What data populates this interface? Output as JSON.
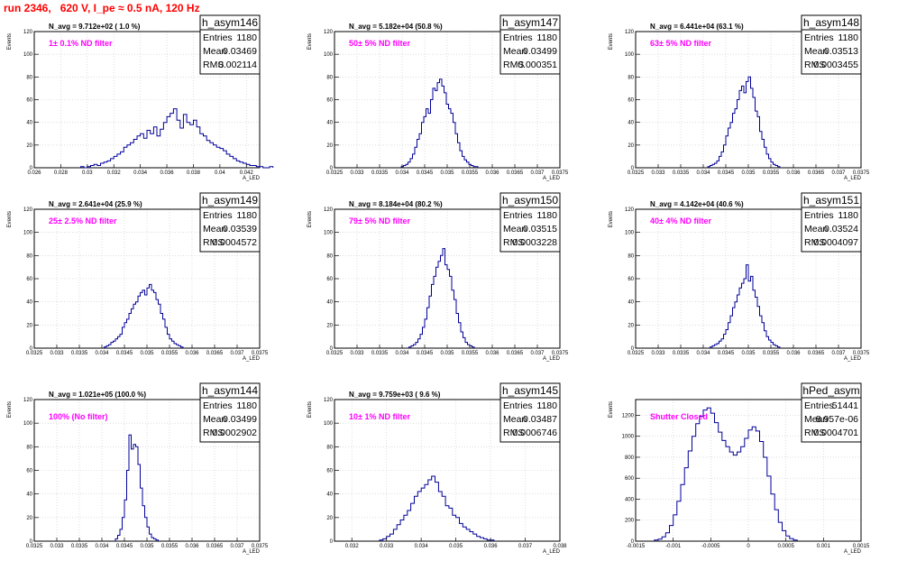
{
  "title": "run 2346,   620 V, I_pe ≈ 0.5 nA, 120 Hz",
  "colors": {
    "hist": "#000099",
    "title": "#ff0000",
    "filter_label": "#ff00ff",
    "grid": "#c8c8c8"
  },
  "chart_data": [
    {
      "type": "bar",
      "name": "h_asym146",
      "annotation": "N_avg = 9.712e+02 ( 1.0 %)",
      "filter_label": "1± 0.1% ND filter",
      "stats": [
        [
          "Entries",
          "1180"
        ],
        [
          "Mean",
          "0.03469"
        ],
        [
          "RMS",
          "0.002114"
        ]
      ],
      "xlabel": "A_LED",
      "ylabel": "Events",
      "xlim": [
        0.026,
        0.043
      ],
      "ylim": [
        0,
        120
      ],
      "xticks": [
        0.026,
        0.028,
        0.03,
        0.032,
        0.034,
        0.036,
        0.038,
        0.04,
        0.042
      ],
      "xtick_labels": [
        "0.026",
        "0.028",
        "0.03",
        "0.032",
        "0.034",
        "0.036",
        "0.038",
        "0.04",
        "0.042"
      ],
      "yticks": [
        0,
        20,
        40,
        60,
        80,
        100,
        120
      ],
      "bin_start": 0.0295,
      "bin_width": 0.00025,
      "values": [
        1,
        0,
        1,
        2,
        3,
        2,
        4,
        5,
        6,
        8,
        10,
        12,
        14,
        18,
        20,
        22,
        25,
        28,
        30,
        26,
        33,
        30,
        36,
        28,
        34,
        40,
        45,
        48,
        52,
        42,
        35,
        47,
        40,
        38,
        42,
        36,
        30,
        28,
        24,
        22,
        20,
        18,
        17,
        15,
        12,
        10,
        8,
        6,
        5,
        4,
        3,
        2,
        2,
        1,
        1,
        0,
        0,
        1
      ]
    },
    {
      "type": "bar",
      "name": "h_asym147",
      "annotation": "N_avg = 5.182e+04 (50.8 %)",
      "filter_label": "50± 5% ND filter",
      "stats": [
        [
          "Entries",
          "1180"
        ],
        [
          "Mean",
          "0.03499"
        ],
        [
          "RMS",
          "0.000351"
        ]
      ],
      "xlabel": "A_LED",
      "ylabel": "Events",
      "xlim": [
        0.0325,
        0.0375
      ],
      "ylim": [
        0,
        120
      ],
      "xticks": [
        0.0325,
        0.033,
        0.0335,
        0.034,
        0.0345,
        0.035,
        0.0355,
        0.036,
        0.0365,
        0.037,
        0.0375
      ],
      "xtick_labels": [
        "0.0325",
        "0.033",
        "0.0335",
        "0.034",
        "0.0345",
        "0.035",
        "0.0355",
        "0.036",
        "0.0365",
        "0.037",
        "0.0375"
      ],
      "yticks": [
        0,
        20,
        40,
        60,
        80,
        100,
        120
      ],
      "bin_start": 0.03398,
      "bin_width": 5e-05,
      "values": [
        1,
        2,
        3,
        5,
        8,
        12,
        18,
        25,
        30,
        40,
        45,
        52,
        48,
        60,
        70,
        68,
        75,
        78,
        72,
        66,
        56,
        52,
        48,
        40,
        30,
        22,
        15,
        10,
        7,
        5,
        3,
        2,
        1,
        1
      ]
    },
    {
      "type": "bar",
      "name": "h_asym148",
      "annotation": "N_avg = 6.441e+04 (63.1 %)",
      "filter_label": "63± 5% ND filter",
      "stats": [
        [
          "Entries",
          "1180"
        ],
        [
          "Mean",
          "0.03513"
        ],
        [
          "RMS",
          "0.0003455"
        ]
      ],
      "xlabel": "A_LED",
      "ylabel": "Events",
      "xlim": [
        0.0325,
        0.0375
      ],
      "ylim": [
        0,
        120
      ],
      "xticks": [
        0.0325,
        0.033,
        0.0335,
        0.034,
        0.0345,
        0.035,
        0.0355,
        0.036,
        0.0365,
        0.037,
        0.0375
      ],
      "xtick_labels": [
        "0.0325",
        "0.033",
        "0.0335",
        "0.034",
        "0.0345",
        "0.035",
        "0.0355",
        "0.036",
        "0.0365",
        "0.037",
        "0.0375"
      ],
      "yticks": [
        0,
        20,
        40,
        60,
        80,
        100,
        120
      ],
      "bin_start": 0.0341,
      "bin_width": 5e-05,
      "values": [
        1,
        2,
        3,
        4,
        6,
        10,
        14,
        20,
        28,
        35,
        40,
        48,
        52,
        60,
        68,
        72,
        66,
        76,
        80,
        70,
        62,
        50,
        45,
        32,
        25,
        18,
        12,
        8,
        5,
        3,
        2,
        1
      ]
    },
    {
      "type": "bar",
      "name": "h_asym149",
      "annotation": "N_avg = 2.641e+04 (25.9 %)",
      "filter_label": "25± 2.5% ND filter",
      "stats": [
        [
          "Entries",
          "1180"
        ],
        [
          "Mean",
          "0.03539"
        ],
        [
          "RMS",
          "0.0004572"
        ]
      ],
      "xlabel": "A_LED",
      "ylabel": "Events",
      "xlim": [
        0.0325,
        0.0375
      ],
      "ylim": [
        0,
        120
      ],
      "xticks": [
        0.0325,
        0.033,
        0.0335,
        0.034,
        0.0345,
        0.035,
        0.0355,
        0.036,
        0.0365,
        0.037,
        0.0375
      ],
      "xtick_labels": [
        "0.0325",
        "0.033",
        "0.0335",
        "0.034",
        "0.0345",
        "0.035",
        "0.0355",
        "0.036",
        "0.0365",
        "0.037",
        "0.0375"
      ],
      "yticks": [
        0,
        20,
        40,
        60,
        80,
        100,
        120
      ],
      "bin_start": 0.03405,
      "bin_width": 5e-05,
      "values": [
        1,
        2,
        3,
        5,
        6,
        8,
        10,
        12,
        18,
        22,
        25,
        30,
        34,
        38,
        40,
        45,
        48,
        50,
        46,
        52,
        55,
        50,
        48,
        42,
        38,
        30,
        25,
        18,
        12,
        8,
        6,
        4,
        3,
        2,
        1
      ]
    },
    {
      "type": "bar",
      "name": "h_asym150",
      "annotation": "N_avg = 8.184e+04 (80.2 %)",
      "filter_label": "79± 5% ND filter",
      "stats": [
        [
          "Entries",
          "1180"
        ],
        [
          "Mean",
          "0.03515"
        ],
        [
          "RMS",
          "0.0003228"
        ]
      ],
      "xlabel": "A_LED",
      "ylabel": "Events",
      "xlim": [
        0.0325,
        0.0375
      ],
      "ylim": [
        0,
        120
      ],
      "xticks": [
        0.0325,
        0.033,
        0.0335,
        0.034,
        0.0345,
        0.035,
        0.0355,
        0.036,
        0.0365,
        0.037,
        0.0375
      ],
      "xtick_labels": [
        "0.0325",
        "0.033",
        "0.0335",
        "0.034",
        "0.0345",
        "0.035",
        "0.0355",
        "0.036",
        "0.0365",
        "0.037",
        "0.0375"
      ],
      "yticks": [
        0,
        20,
        40,
        60,
        80,
        100,
        120
      ],
      "bin_start": 0.03415,
      "bin_width": 5e-05,
      "values": [
        1,
        2,
        3,
        5,
        8,
        12,
        18,
        25,
        35,
        45,
        55,
        62,
        70,
        75,
        80,
        86,
        72,
        68,
        62,
        50,
        42,
        30,
        22,
        14,
        9,
        5,
        3,
        2,
        1
      ]
    },
    {
      "type": "bar",
      "name": "h_asym151",
      "annotation": "N_avg = 4.142e+04 (40.6 %)",
      "filter_label": "40± 4% ND filter",
      "stats": [
        [
          "Entries",
          "1180"
        ],
        [
          "Mean",
          "0.03524"
        ],
        [
          "RMS",
          "0.0004097"
        ]
      ],
      "xlabel": "A_LED",
      "ylabel": "Events",
      "xlim": [
        0.0325,
        0.0375
      ],
      "ylim": [
        0,
        120
      ],
      "xticks": [
        0.0325,
        0.033,
        0.0335,
        0.034,
        0.0345,
        0.035,
        0.0355,
        0.036,
        0.0365,
        0.037,
        0.0375
      ],
      "xtick_labels": [
        "0.0325",
        "0.033",
        "0.0335",
        "0.034",
        "0.0345",
        "0.035",
        "0.0355",
        "0.036",
        "0.0365",
        "0.037",
        "0.0375"
      ],
      "yticks": [
        0,
        20,
        40,
        60,
        80,
        100,
        120
      ],
      "bin_start": 0.03415,
      "bin_width": 5e-05,
      "values": [
        1,
        2,
        3,
        4,
        6,
        8,
        12,
        16,
        22,
        28,
        35,
        40,
        46,
        52,
        56,
        60,
        72,
        58,
        62,
        50,
        44,
        36,
        28,
        22,
        15,
        10,
        7,
        5,
        3,
        2,
        1
      ]
    },
    {
      "type": "bar",
      "name": "h_asym144",
      "annotation": "N_avg = 1.021e+05 (100.0 %)",
      "filter_label": "100% (No filter)",
      "stats": [
        [
          "Entries",
          "1180"
        ],
        [
          "Mean",
          "0.03499"
        ],
        [
          "RMS",
          "0.0002902"
        ]
      ],
      "xlabel": "A_LED",
      "ylabel": "Events",
      "xlim": [
        0.0325,
        0.0375
      ],
      "ylim": [
        0,
        120
      ],
      "xticks": [
        0.0325,
        0.033,
        0.0335,
        0.034,
        0.0345,
        0.035,
        0.0355,
        0.036,
        0.0365,
        0.037,
        0.0375
      ],
      "xtick_labels": [
        "0.0325",
        "0.033",
        "0.0335",
        "0.034",
        "0.0345",
        "0.035",
        "0.0355",
        "0.036",
        "0.0365",
        "0.037",
        "0.0375"
      ],
      "yticks": [
        0,
        20,
        40,
        60,
        80,
        100,
        120
      ],
      "bin_start": 0.0343,
      "bin_width": 5e-05,
      "values": [
        2,
        5,
        10,
        20,
        35,
        60,
        90,
        78,
        82,
        80,
        65,
        45,
        30,
        20,
        12,
        6,
        3,
        2,
        1
      ]
    },
    {
      "type": "bar",
      "name": "h_asym145",
      "annotation": "N_avg = 9.759e+03 ( 9.6 %)",
      "filter_label": "10± 1% ND filter",
      "stats": [
        [
          "Entries",
          "1180"
        ],
        [
          "Mean",
          "0.03487"
        ],
        [
          "RMS",
          "0.0006746"
        ]
      ],
      "xlabel": "A_LED",
      "ylabel": "Events",
      "xlim": [
        0.0315,
        0.038
      ],
      "ylim": [
        0,
        120
      ],
      "xticks": [
        0.032,
        0.033,
        0.034,
        0.035,
        0.036,
        0.037,
        0.038
      ],
      "xtick_labels": [
        "0.032",
        "0.033",
        "0.034",
        "0.035",
        "0.036",
        "0.037",
        "0.038"
      ],
      "yticks": [
        0,
        20,
        40,
        60,
        80,
        100,
        120
      ],
      "bin_start": 0.0328,
      "bin_width": 0.0001,
      "values": [
        1,
        2,
        4,
        6,
        10,
        14,
        18,
        22,
        26,
        32,
        38,
        42,
        45,
        48,
        52,
        55,
        50,
        42,
        38,
        30,
        28,
        22,
        20,
        15,
        12,
        10,
        8,
        6,
        4,
        3,
        2,
        1,
        1
      ]
    },
    {
      "type": "bar",
      "name": "hPed_asym",
      "annotation": "",
      "filter_label": "Shutter Closed",
      "stats": [
        [
          "Entries",
          "51441"
        ],
        [
          "Mean",
          "8.957e-06"
        ],
        [
          "RMS",
          "0.0004701"
        ]
      ],
      "xlabel": "A_LED",
      "ylabel": "Events",
      "xlim": [
        -0.0015,
        0.0015
      ],
      "ylim": [
        0,
        1350
      ],
      "xticks": [
        -0.0015,
        -0.001,
        -0.0005,
        0,
        0.0005,
        0.001,
        0.0015
      ],
      "xtick_labels": [
        "-0.0015",
        "-0.001",
        "-0.0005",
        "0",
        "0.0005",
        "0.001",
        "0.0015"
      ],
      "yticks": [
        0,
        200,
        400,
        600,
        800,
        1000,
        1200
      ],
      "bin_start": -0.00125,
      "bin_width": 5e-05,
      "values": [
        10,
        20,
        40,
        80,
        150,
        250,
        380,
        540,
        700,
        860,
        1000,
        1120,
        1190,
        1250,
        1270,
        1220,
        1130,
        1040,
        960,
        900,
        850,
        820,
        850,
        900,
        980,
        1060,
        1090,
        1050,
        950,
        800,
        620,
        450,
        300,
        180,
        100,
        50,
        25,
        10
      ]
    }
  ]
}
